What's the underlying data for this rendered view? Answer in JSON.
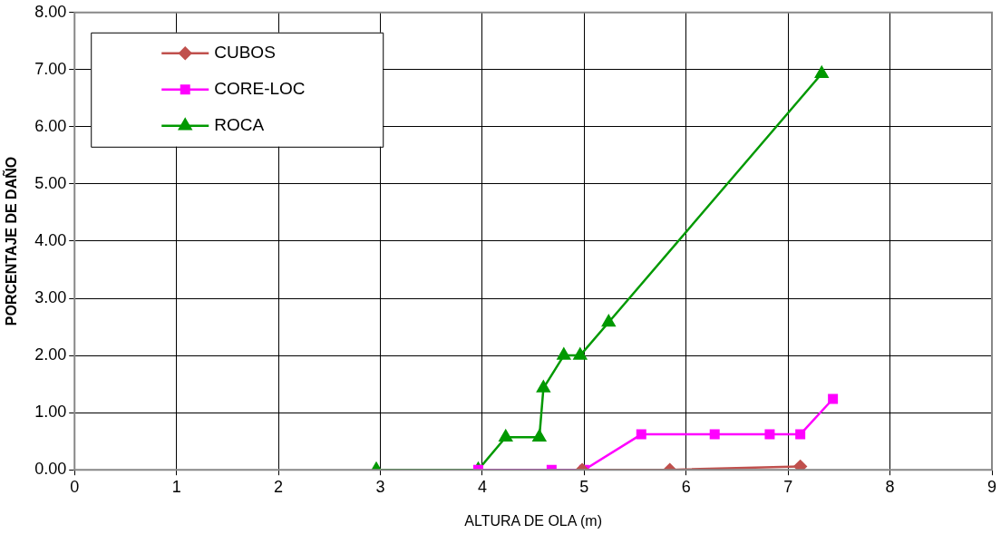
{
  "chart_data": {
    "type": "line",
    "xlabel": "ALTURA DE OLA (m)",
    "ylabel": "PORCENTAJE DE DAÑO",
    "xlim": [
      0,
      9
    ],
    "xticks": [
      0,
      1,
      2,
      3,
      4,
      5,
      6,
      7,
      8,
      9
    ],
    "ylim": [
      0,
      8
    ],
    "yticks": [
      {
        "value": 0,
        "label": "0.00"
      },
      {
        "value": 1,
        "label": "1.00"
      },
      {
        "value": 2,
        "label": "2.00"
      },
      {
        "value": 3,
        "label": "3.00"
      },
      {
        "value": 4,
        "label": "4.00"
      },
      {
        "value": 5,
        "label": "5.00"
      },
      {
        "value": 6,
        "label": "6.00"
      },
      {
        "value": 7,
        "label": "7.00"
      },
      {
        "value": 8,
        "label": "8.00"
      }
    ],
    "grid": true,
    "legend": "top left",
    "line_style": "solid",
    "series": [
      {
        "name": "CUBOS",
        "color": "#c0504d",
        "marker": "diamond",
        "x": [
          4.98,
          5.84,
          7.12
        ],
        "values": [
          0,
          0,
          0.06
        ]
      },
      {
        "name": "CORE-LOC",
        "color": "#ff00ff",
        "marker": "square",
        "x": [
          3.96,
          4.68,
          5.0,
          5.56,
          6.28,
          6.82,
          7.12,
          7.44
        ],
        "values": [
          0,
          0,
          0,
          0.62,
          0.62,
          0.62,
          0.62,
          1.24
        ]
      },
      {
        "name": "ROCA",
        "color": "#009900",
        "marker": "triangle",
        "x": [
          2.96,
          3.96,
          4.23,
          4.56,
          4.6,
          4.8,
          4.96,
          5.24,
          7.33
        ],
        "values": [
          0,
          0,
          0.57,
          0.57,
          1.43,
          2.0,
          2.0,
          2.58,
          6.93
        ]
      }
    ]
  }
}
